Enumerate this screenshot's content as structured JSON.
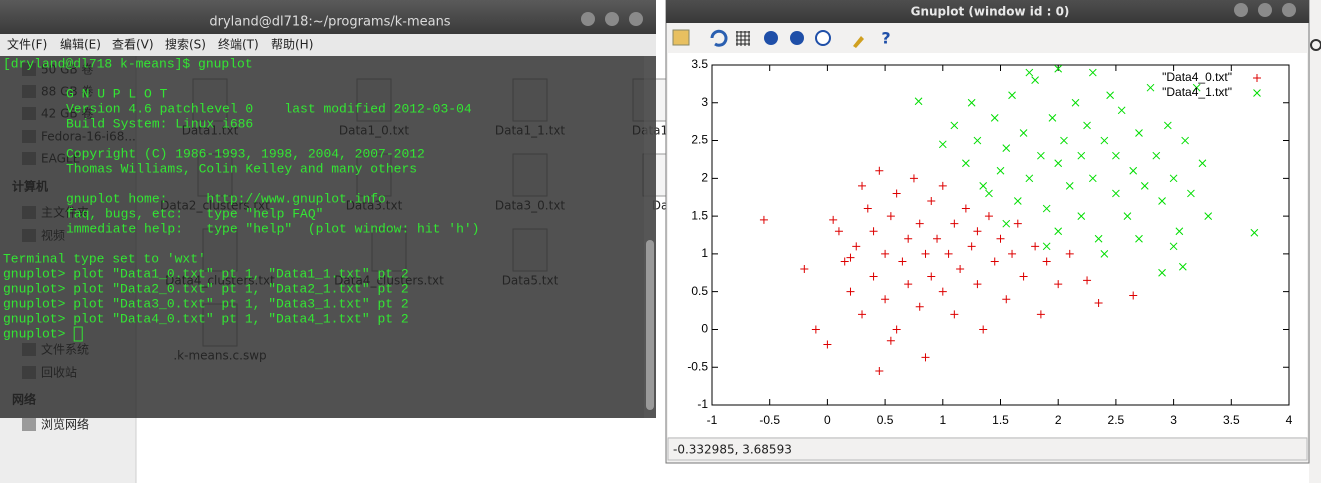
{
  "file_manager": {
    "sidebar_items": [
      "50 GB 卷",
      "88 GB 卷",
      "42 GB 卷",
      "Fedora-16-i68...",
      "EAGLE",
      "主文件夹",
      "视频",
      "文件系统",
      "回收站",
      "浏览网络"
    ],
    "sidebar_headers": [
      "计算机",
      "网络"
    ],
    "files": [
      "Data1.txt",
      "Data1_0.txt",
      "Data1_1.txt",
      "Data1",
      "Data2_clusters.txt",
      "Data3.txt",
      "Data3_0.txt",
      "Da",
      "Data4_clusters.txt",
      "Data4_clusters.txt",
      "Data5.txt",
      ".k-means.c.swp"
    ]
  },
  "terminal": {
    "title": "dryland@dl718:~/programs/k-means",
    "menu": [
      "文件(F)",
      "编辑(E)",
      "查看(V)",
      "搜索(S)",
      "终端(T)",
      "帮助(H)"
    ],
    "lines": [
      "[dryland@dl718 k-means]$ gnuplot",
      "G N U P L O T",
      "Version 4.6 patchlevel 0    last modified 2012-03-04",
      "Build System: Linux i686",
      "Copyright (C) 1986-1993, 1998, 2004, 2007-2012",
      "Thomas Williams, Colin Kelley and many others",
      "gnuplot home:     http://www.gnuplot.info",
      "faq, bugs, etc:   type \"help FAQ\"",
      "immediate help:   type \"help\"  (plot window: hit 'h')",
      "Terminal type set to 'wxt'",
      "gnuplot> plot \"Data1_0.txt\" pt 1, \"Data1_1.txt\" pt 2",
      "gnuplot> plot \"Data2_0.txt\" pt 1, \"Data2_1.txt\" pt 2",
      "gnuplot> plot \"Data3_0.txt\" pt 1, \"Data3_1.txt\" pt 2",
      "gnuplot> plot \"Data4_0.txt\" pt 1, \"Data4_1.txt\" pt 2",
      "gnuplot> "
    ]
  },
  "gnuplot_window": {
    "title": "Gnuplot (window id : 0)",
    "status": "-0.332985, 3.68593"
  },
  "chart_data": {
    "type": "scatter",
    "xlim": [
      -1,
      4
    ],
    "xticks": [
      -1,
      -0.5,
      0,
      0.5,
      1,
      1.5,
      2,
      2.5,
      3,
      3.5,
      4
    ],
    "ylim": [
      -1,
      3.5
    ],
    "yticks": [
      -1,
      -0.5,
      0,
      0.5,
      1,
      1.5,
      2,
      2.5,
      3,
      3.5
    ],
    "legend": "top-right",
    "series": [
      {
        "name": "\"Data4_0.txt\"",
        "color": "#dd0000",
        "marker": "+",
        "x": [
          -0.55,
          -0.2,
          -0.1,
          0.0,
          0.45,
          0.85,
          0.05,
          0.1,
          0.15,
          0.2,
          0.25,
          0.3,
          0.3,
          0.35,
          0.4,
          0.4,
          0.45,
          0.5,
          0.5,
          0.55,
          0.6,
          0.6,
          0.65,
          0.7,
          0.7,
          0.75,
          0.8,
          0.8,
          0.85,
          0.9,
          0.9,
          0.95,
          1.0,
          1.0,
          1.05,
          1.1,
          1.1,
          1.15,
          1.2,
          1.25,
          1.3,
          1.3,
          1.35,
          1.4,
          1.45,
          1.5,
          1.55,
          1.6,
          1.65,
          1.7,
          1.8,
          1.85,
          1.9,
          2.0,
          2.1,
          2.25,
          2.35,
          2.65,
          0.2,
          0.55
        ],
        "values": [
          1.45,
          0.8,
          0.0,
          -0.2,
          -0.55,
          -0.37,
          1.45,
          1.3,
          0.9,
          0.5,
          1.1,
          1.9,
          0.2,
          1.6,
          0.7,
          1.3,
          2.1,
          1.0,
          0.4,
          1.5,
          0.0,
          1.8,
          0.9,
          1.2,
          0.6,
          2.0,
          1.4,
          0.3,
          1.0,
          1.7,
          0.7,
          1.2,
          0.5,
          1.9,
          1.0,
          1.4,
          0.2,
          0.8,
          1.6,
          1.1,
          0.6,
          1.3,
          0.0,
          1.5,
          0.9,
          1.2,
          0.4,
          1.0,
          1.4,
          0.7,
          1.1,
          0.2,
          0.9,
          0.6,
          1.0,
          0.65,
          0.35,
          0.45,
          0.95,
          -0.15
        ]
      },
      {
        "name": "\"Data4_1.txt\"",
        "color": "#00dd00",
        "marker": "x",
        "x": [
          0.79,
          1.0,
          1.1,
          1.2,
          1.25,
          1.3,
          1.4,
          1.45,
          1.5,
          1.55,
          1.6,
          1.65,
          1.7,
          1.75,
          1.8,
          1.85,
          1.9,
          1.95,
          2.0,
          2.0,
          2.05,
          2.1,
          2.15,
          2.2,
          2.2,
          2.25,
          2.3,
          2.35,
          2.4,
          2.45,
          2.5,
          2.5,
          2.55,
          2.6,
          2.65,
          2.7,
          2.75,
          2.8,
          2.85,
          2.9,
          2.9,
          2.95,
          3.0,
          3.05,
          3.08,
          3.1,
          3.15,
          3.2,
          3.25,
          3.3,
          3.7,
          1.75,
          1.55,
          2.0,
          2.4,
          1.35,
          2.3,
          1.9,
          3.0,
          2.7
        ],
        "values": [
          3.02,
          2.45,
          2.7,
          2.2,
          3.0,
          2.5,
          1.8,
          2.8,
          2.1,
          2.4,
          3.1,
          1.7,
          2.6,
          2.0,
          3.3,
          2.3,
          1.6,
          2.8,
          2.2,
          1.3,
          2.5,
          1.9,
          3.0,
          2.3,
          1.5,
          2.7,
          2.0,
          1.2,
          2.5,
          3.1,
          1.8,
          2.3,
          2.9,
          1.5,
          2.1,
          2.6,
          1.9,
          3.2,
          2.3,
          1.7,
          0.75,
          2.7,
          2.0,
          1.3,
          0.83,
          2.5,
          1.8,
          3.2,
          2.2,
          1.5,
          1.28,
          3.4,
          1.4,
          3.45,
          1.0,
          1.9,
          3.4,
          1.1,
          1.1,
          1.2
        ]
      }
    ]
  }
}
